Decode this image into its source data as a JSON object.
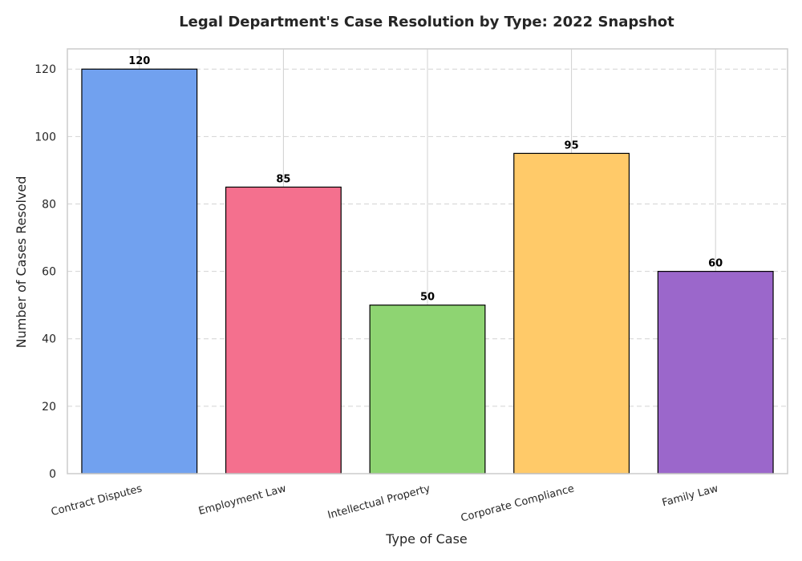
{
  "chart_data": {
    "type": "bar",
    "title": "Legal Department's Case Resolution by Type: 2022 Snapshot",
    "xlabel": "Type of Case",
    "ylabel": "Number of Cases Resolved",
    "categories": [
      "Contract Disputes",
      "Employment Law",
      "Intellectual Property",
      "Corporate Compliance",
      "Family Law"
    ],
    "values": [
      120,
      85,
      50,
      95,
      60
    ],
    "colors": [
      "#71a1ef",
      "#f4708e",
      "#8ed472",
      "#ffca69",
      "#9b67cb"
    ],
    "data_labels": [
      "120",
      "85",
      "50",
      "95",
      "60"
    ],
    "ylim": [
      0,
      126
    ],
    "yticks": [
      0,
      20,
      40,
      60,
      80,
      100,
      120
    ],
    "grid": true,
    "xtick_rotation": 15
  }
}
